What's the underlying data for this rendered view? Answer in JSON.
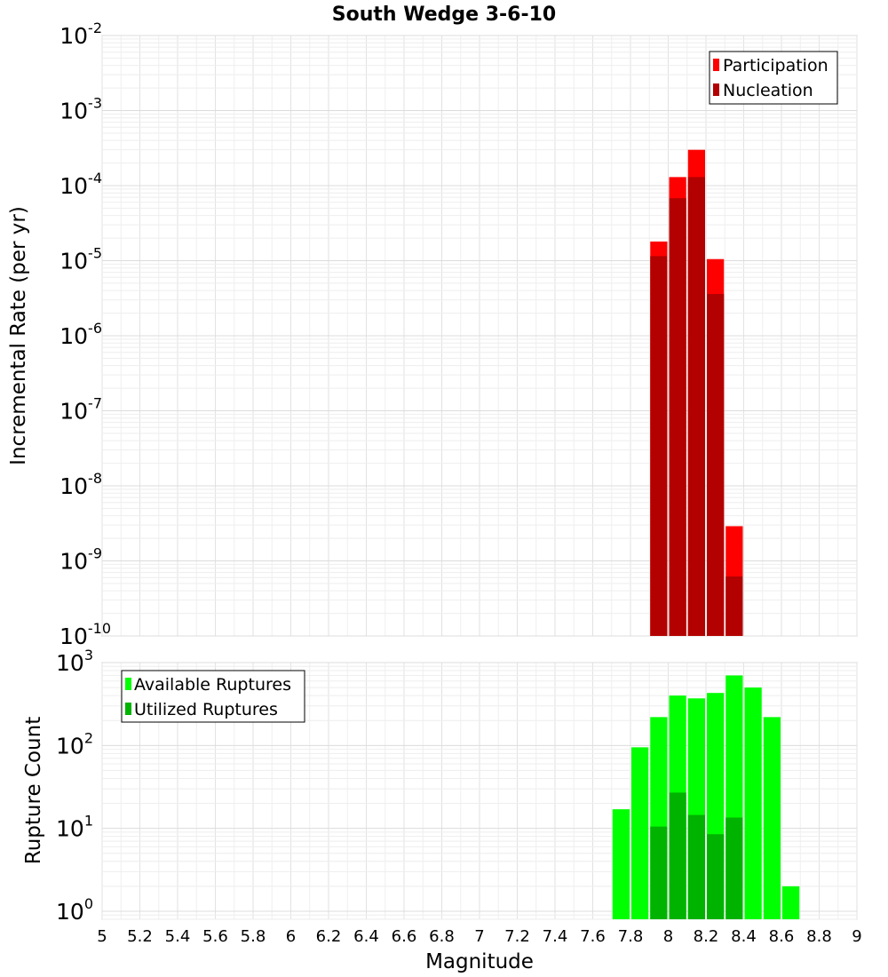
{
  "title": "South Wedge 3-6-10",
  "xlabel": "Magnitude",
  "x_ticks": [
    "5",
    "5.2",
    "5.4",
    "5.6",
    "5.8",
    "6",
    "6.2",
    "6.4",
    "6.6",
    "6.8",
    "7",
    "7.2",
    "7.4",
    "7.6",
    "7.8",
    "8",
    "8.2",
    "8.4",
    "8.6",
    "8.8",
    "9"
  ],
  "chart_data": [
    {
      "type": "bar",
      "title": "South Wedge 3-6-10",
      "ylabel": "Incremental Rate (per yr)",
      "yscale": "log",
      "ylim": [
        1e-10,
        0.01
      ],
      "xlim": [
        5,
        9
      ],
      "bin_width": 0.1,
      "y_ticks": [
        {
          "base": "10",
          "exp": "-2"
        },
        {
          "base": "10",
          "exp": "-3"
        },
        {
          "base": "10",
          "exp": "-4"
        },
        {
          "base": "10",
          "exp": "-5"
        },
        {
          "base": "10",
          "exp": "-6"
        },
        {
          "base": "10",
          "exp": "-7"
        },
        {
          "base": "10",
          "exp": "-8"
        },
        {
          "base": "10",
          "exp": "-9"
        },
        {
          "base": "10",
          "exp": "-10"
        }
      ],
      "legend_position": "top-right",
      "series": [
        {
          "name": "Participation",
          "color": "#ff0000",
          "x": [
            7.95,
            8.05,
            8.15,
            8.25,
            8.35
          ],
          "values": [
            1.8e-05,
            0.00013,
            0.0003,
            1.05e-05,
            2.9e-09
          ]
        },
        {
          "name": "Nucleation",
          "color": "#b30000",
          "x": [
            7.95,
            8.05,
            8.15,
            8.25,
            8.35
          ],
          "values": [
            1.15e-05,
            6.8e-05,
            0.00013,
            3.6e-06,
            6.2e-10
          ]
        }
      ]
    },
    {
      "type": "bar",
      "ylabel": "Rupture Count",
      "yscale": "log",
      "ylim": [
        0.8,
        1000
      ],
      "xlim": [
        5,
        9
      ],
      "bin_width": 0.1,
      "y_ticks": [
        {
          "base": "10",
          "exp": "3"
        },
        {
          "base": "10",
          "exp": "2"
        },
        {
          "base": "10",
          "exp": "1"
        },
        {
          "base": "10",
          "exp": "0"
        }
      ],
      "legend_position": "top-left",
      "series": [
        {
          "name": "Available Ruptures",
          "color": "#00ff00",
          "x": [
            7.75,
            7.85,
            7.95,
            8.05,
            8.15,
            8.25,
            8.35,
            8.45,
            8.55,
            8.65
          ],
          "values": [
            17,
            95,
            220,
            400,
            370,
            430,
            700,
            500,
            220,
            2
          ]
        },
        {
          "name": "Utilized Ruptures",
          "color": "#00b300",
          "x": [
            7.95,
            8.05,
            8.15,
            8.25,
            8.35
          ],
          "values": [
            10.5,
            27,
            14.5,
            8.5,
            13.5
          ]
        }
      ]
    }
  ]
}
